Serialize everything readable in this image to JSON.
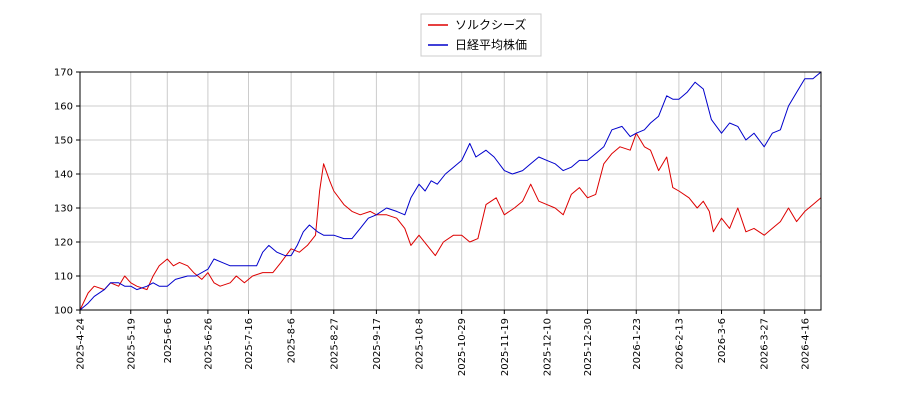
{
  "chart_data": {
    "type": "line",
    "title": "",
    "xlabel": "",
    "ylabel": "",
    "ylim": [
      100,
      170
    ],
    "yticks": [
      100,
      110,
      120,
      130,
      140,
      150,
      160,
      170
    ],
    "x_range": [
      "2025-04-24",
      "2026-04-24"
    ],
    "xticks": [
      "2025-4-24",
      "2025-5-19",
      "2025-6-6",
      "2025-6-26",
      "2025-7-16",
      "2025-8-6",
      "2025-8-27",
      "2025-9-17",
      "2025-10-8",
      "2025-10-29",
      "2025-11-19",
      "2025-12-10",
      "2025-12-30",
      "2026-1-23",
      "2026-2-13",
      "2026-3-6",
      "2026-3-27",
      "2026-4-16"
    ],
    "grid": true,
    "legend_position": "top-center",
    "series": [
      {
        "name": "ソルクシーズ",
        "color": "#dd0000",
        "points": [
          [
            "2025-04-24",
            100
          ],
          [
            "2025-04-28",
            105
          ],
          [
            "2025-05-01",
            107
          ],
          [
            "2025-05-06",
            106
          ],
          [
            "2025-05-09",
            108
          ],
          [
            "2025-05-13",
            107
          ],
          [
            "2025-05-16",
            110
          ],
          [
            "2025-05-19",
            108
          ],
          [
            "2025-05-22",
            107
          ],
          [
            "2025-05-27",
            106
          ],
          [
            "2025-05-30",
            110
          ],
          [
            "2025-06-02",
            113
          ],
          [
            "2025-06-06",
            115
          ],
          [
            "2025-06-09",
            113
          ],
          [
            "2025-06-12",
            114
          ],
          [
            "2025-06-16",
            113
          ],
          [
            "2025-06-19",
            111
          ],
          [
            "2025-06-23",
            109
          ],
          [
            "2025-06-26",
            111
          ],
          [
            "2025-06-29",
            108
          ],
          [
            "2025-07-02",
            107
          ],
          [
            "2025-07-07",
            108
          ],
          [
            "2025-07-10",
            110
          ],
          [
            "2025-07-14",
            108
          ],
          [
            "2025-07-18",
            110
          ],
          [
            "2025-07-23",
            111
          ],
          [
            "2025-07-28",
            111
          ],
          [
            "2025-08-01",
            114
          ],
          [
            "2025-08-06",
            118
          ],
          [
            "2025-08-10",
            117
          ],
          [
            "2025-08-14",
            119
          ],
          [
            "2025-08-18",
            122
          ],
          [
            "2025-08-20",
            135
          ],
          [
            "2025-08-22",
            143
          ],
          [
            "2025-08-25",
            138
          ],
          [
            "2025-08-27",
            135
          ],
          [
            "2025-09-01",
            131
          ],
          [
            "2025-09-05",
            129
          ],
          [
            "2025-09-09",
            128
          ],
          [
            "2025-09-14",
            129
          ],
          [
            "2025-09-17",
            128
          ],
          [
            "2025-09-22",
            128
          ],
          [
            "2025-09-27",
            127
          ],
          [
            "2025-10-01",
            124
          ],
          [
            "2025-10-04",
            119
          ],
          [
            "2025-10-08",
            122
          ],
          [
            "2025-10-12",
            119
          ],
          [
            "2025-10-16",
            116
          ],
          [
            "2025-10-20",
            120
          ],
          [
            "2025-10-25",
            122
          ],
          [
            "2025-10-29",
            122
          ],
          [
            "2025-11-02",
            120
          ],
          [
            "2025-11-06",
            121
          ],
          [
            "2025-11-10",
            131
          ],
          [
            "2025-11-15",
            133
          ],
          [
            "2025-11-19",
            128
          ],
          [
            "2025-11-24",
            130
          ],
          [
            "2025-11-28",
            132
          ],
          [
            "2025-12-02",
            137
          ],
          [
            "2025-12-06",
            132
          ],
          [
            "2025-12-10",
            131
          ],
          [
            "2025-12-14",
            130
          ],
          [
            "2025-12-18",
            128
          ],
          [
            "2025-12-22",
            134
          ],
          [
            "2025-12-26",
            136
          ],
          [
            "2025-12-30",
            133
          ],
          [
            "2026-01-03",
            134
          ],
          [
            "2026-01-07",
            143
          ],
          [
            "2026-01-11",
            146
          ],
          [
            "2026-01-15",
            148
          ],
          [
            "2026-01-20",
            147
          ],
          [
            "2026-01-23",
            152
          ],
          [
            "2026-01-27",
            148
          ],
          [
            "2026-01-30",
            147
          ],
          [
            "2026-02-03",
            141
          ],
          [
            "2026-02-07",
            145
          ],
          [
            "2026-02-10",
            136
          ],
          [
            "2026-02-13",
            135
          ],
          [
            "2026-02-18",
            133
          ],
          [
            "2026-02-22",
            130
          ],
          [
            "2026-02-25",
            132
          ],
          [
            "2026-02-28",
            129
          ],
          [
            "2026-03-02",
            123
          ],
          [
            "2026-03-06",
            127
          ],
          [
            "2026-03-10",
            124
          ],
          [
            "2026-03-14",
            130
          ],
          [
            "2026-03-18",
            123
          ],
          [
            "2026-03-22",
            124
          ],
          [
            "2026-03-27",
            122
          ],
          [
            "2026-03-31",
            124
          ],
          [
            "2026-04-04",
            126
          ],
          [
            "2026-04-08",
            130
          ],
          [
            "2026-04-12",
            126
          ],
          [
            "2026-04-16",
            129
          ],
          [
            "2026-04-20",
            131
          ],
          [
            "2026-04-24",
            133
          ]
        ]
      },
      {
        "name": "日経平均株価",
        "color": "#0000cc",
        "points": [
          [
            "2025-04-24",
            100
          ],
          [
            "2025-04-28",
            102
          ],
          [
            "2025-05-01",
            104
          ],
          [
            "2025-05-06",
            106
          ],
          [
            "2025-05-09",
            108
          ],
          [
            "2025-05-13",
            108
          ],
          [
            "2025-05-16",
            107
          ],
          [
            "2025-05-19",
            107
          ],
          [
            "2025-05-22",
            106
          ],
          [
            "2025-05-27",
            107
          ],
          [
            "2025-05-30",
            108
          ],
          [
            "2025-06-02",
            107
          ],
          [
            "2025-06-06",
            107
          ],
          [
            "2025-06-10",
            109
          ],
          [
            "2025-06-16",
            110
          ],
          [
            "2025-06-20",
            110
          ],
          [
            "2025-06-26",
            112
          ],
          [
            "2025-06-29",
            115
          ],
          [
            "2025-07-03",
            114
          ],
          [
            "2025-07-07",
            113
          ],
          [
            "2025-07-11",
            113
          ],
          [
            "2025-07-16",
            113
          ],
          [
            "2025-07-20",
            113
          ],
          [
            "2025-07-23",
            117
          ],
          [
            "2025-07-26",
            119
          ],
          [
            "2025-07-30",
            117
          ],
          [
            "2025-08-03",
            116
          ],
          [
            "2025-08-06",
            116
          ],
          [
            "2025-08-09",
            119
          ],
          [
            "2025-08-12",
            123
          ],
          [
            "2025-08-15",
            125
          ],
          [
            "2025-08-19",
            123
          ],
          [
            "2025-08-22",
            122
          ],
          [
            "2025-08-27",
            122
          ],
          [
            "2025-09-01",
            121
          ],
          [
            "2025-09-05",
            121
          ],
          [
            "2025-09-09",
            124
          ],
          [
            "2025-09-13",
            127
          ],
          [
            "2025-09-17",
            128
          ],
          [
            "2025-09-22",
            130
          ],
          [
            "2025-09-27",
            129
          ],
          [
            "2025-10-01",
            128
          ],
          [
            "2025-10-04",
            133
          ],
          [
            "2025-10-08",
            137
          ],
          [
            "2025-10-11",
            135
          ],
          [
            "2025-10-14",
            138
          ],
          [
            "2025-10-17",
            137
          ],
          [
            "2025-10-21",
            140
          ],
          [
            "2025-10-25",
            142
          ],
          [
            "2025-10-29",
            144
          ],
          [
            "2025-11-02",
            149
          ],
          [
            "2025-11-05",
            145
          ],
          [
            "2025-11-10",
            147
          ],
          [
            "2025-11-14",
            145
          ],
          [
            "2025-11-19",
            141
          ],
          [
            "2025-11-23",
            140
          ],
          [
            "2025-11-28",
            141
          ],
          [
            "2025-12-02",
            143
          ],
          [
            "2025-12-06",
            145
          ],
          [
            "2025-12-10",
            144
          ],
          [
            "2025-12-14",
            143
          ],
          [
            "2025-12-18",
            141
          ],
          [
            "2025-12-22",
            142
          ],
          [
            "2025-12-26",
            144
          ],
          [
            "2025-12-30",
            144
          ],
          [
            "2026-01-03",
            146
          ],
          [
            "2026-01-07",
            148
          ],
          [
            "2026-01-11",
            153
          ],
          [
            "2026-01-16",
            154
          ],
          [
            "2026-01-20",
            151
          ],
          [
            "2026-01-23",
            152
          ],
          [
            "2026-01-27",
            153
          ],
          [
            "2026-01-30",
            155
          ],
          [
            "2026-02-03",
            157
          ],
          [
            "2026-02-07",
            163
          ],
          [
            "2026-02-10",
            162
          ],
          [
            "2026-02-13",
            162
          ],
          [
            "2026-02-17",
            164
          ],
          [
            "2026-02-21",
            167
          ],
          [
            "2026-02-25",
            165
          ],
          [
            "2026-03-01",
            156
          ],
          [
            "2026-03-06",
            152
          ],
          [
            "2026-03-10",
            155
          ],
          [
            "2026-03-14",
            154
          ],
          [
            "2026-03-18",
            150
          ],
          [
            "2026-03-22",
            152
          ],
          [
            "2026-03-27",
            148
          ],
          [
            "2026-03-31",
            152
          ],
          [
            "2026-04-04",
            153
          ],
          [
            "2026-04-08",
            160
          ],
          [
            "2026-04-12",
            164
          ],
          [
            "2026-04-16",
            168
          ],
          [
            "2026-04-20",
            168
          ],
          [
            "2026-04-24",
            170
          ]
        ]
      }
    ]
  }
}
